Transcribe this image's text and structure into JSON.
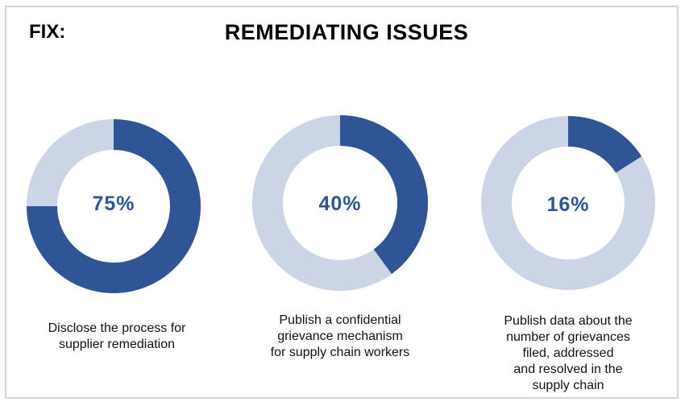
{
  "header": {
    "tag": "FIX:",
    "title": "REMEDIATING ISSUES"
  },
  "colors": {
    "filled": "#2f5597",
    "remaining": "#cbd5e5",
    "text": "#2f5597",
    "frame": "#cdd6e4"
  },
  "chart_data": [
    {
      "type": "pie",
      "style": "donut",
      "value_percent": 75,
      "label": "75%",
      "caption_lines": [
        "Disclose the process for",
        "supplier remediation"
      ]
    },
    {
      "type": "pie",
      "style": "donut",
      "value_percent": 40,
      "label": "40%",
      "caption_lines": [
        "Publish a confidential",
        "grievance mechanism",
        "for supply chain workers"
      ]
    },
    {
      "type": "pie",
      "style": "donut",
      "value_percent": 16,
      "label": "16%",
      "caption_lines": [
        "Publish data about the",
        "number of grievances",
        "filed, addressed",
        "and resolved in the",
        "supply chain"
      ]
    }
  ]
}
